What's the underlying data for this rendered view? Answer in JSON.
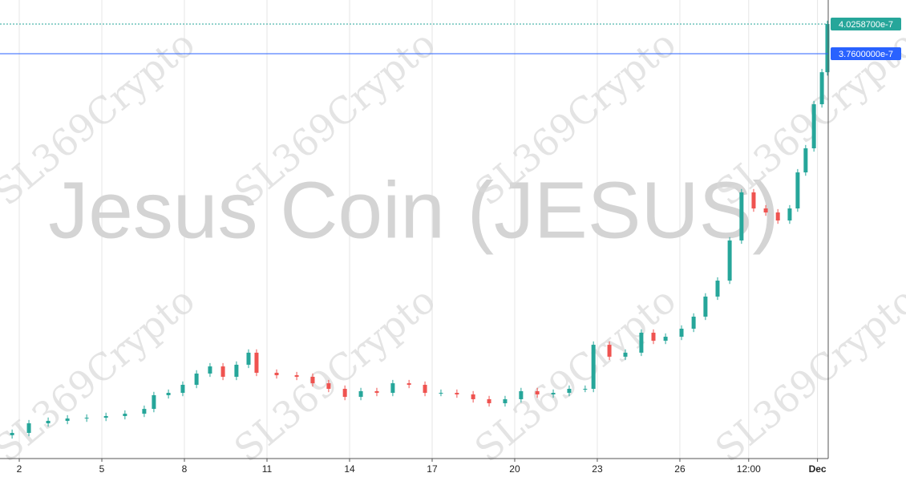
{
  "chart_data": {
    "type": "candlestick",
    "watermark": "Jesus Coin (JESUS)",
    "overlay": "SL369Crypto",
    "up_color": "#26a69a",
    "down_color": "#ef5350",
    "grid": true,
    "xlim": [
      1.3,
      31.39
    ],
    "ylim": [
      1.31e-08,
      4.2414e-07
    ],
    "xticks": [
      {
        "value": 2,
        "label": "2"
      },
      {
        "value": 5,
        "label": "5"
      },
      {
        "value": 8,
        "label": "8"
      },
      {
        "value": 11,
        "label": "11"
      },
      {
        "value": 14,
        "label": "14"
      },
      {
        "value": 17,
        "label": "17"
      },
      {
        "value": 20,
        "label": "20"
      },
      {
        "value": 23,
        "label": "23"
      },
      {
        "value": 26,
        "label": "26"
      },
      {
        "value": 28.5,
        "label": "12:00"
      },
      {
        "value": 31,
        "label": "Dec"
      }
    ],
    "price_lines": [
      {
        "value": 4.02587e-07,
        "label": "4.0258700e-7",
        "color": "#26a69a",
        "dashed": true
      },
      {
        "value": 3.76e-07,
        "label": "3.7600000e-7",
        "color": "#2962ff",
        "dashed": false
      }
    ],
    "x": [
      1.74,
      2.35,
      3.05,
      3.75,
      4.45,
      5.15,
      5.84,
      6.54,
      6.89,
      7.42,
      7.94,
      8.44,
      8.93,
      9.4,
      9.89,
      10.33,
      10.62,
      11.35,
      12.08,
      12.66,
      13.24,
      13.83,
      14.41,
      14.99,
      15.57,
      16.16,
      16.74,
      17.32,
      17.9,
      18.49,
      19.07,
      19.65,
      20.23,
      20.82,
      21.4,
      21.98,
      22.56,
      22.86,
      23.44,
      24.02,
      24.6,
      25.04,
      25.48,
      26.06,
      26.5,
      26.93,
      27.37,
      27.81,
      28.24,
      28.68,
      29.12,
      29.56,
      29.99,
      30.28,
      30.57,
      30.87,
      31.16,
      31.36
    ],
    "open": [
      3.4e-08,
      3.61e-08,
      4.47e-08,
      4.69e-08,
      4.9e-08,
      4.97e-08,
      5.12e-08,
      5.33e-08,
      5.76e-08,
      6.99e-08,
      7.2e-08,
      7.92e-08,
      8.93e-08,
      9.57e-08,
      8.64e-08,
      9.72e-08,
      1.08e-07,
      9e-08,
      8.78e-08,
      8.64e-08,
      8.06e-08,
      7.56e-08,
      6.84e-08,
      7.35e-08,
      7.2e-08,
      8.06e-08,
      7.92e-08,
      7.2e-08,
      7.2e-08,
      7.06e-08,
      6.63e-08,
      6.27e-08,
      6.63e-08,
      7.35e-08,
      7.06e-08,
      7.2e-08,
      7.56e-08,
      7.56e-08,
      1.151e-07,
      1.044e-07,
      1.08e-07,
      1.259e-07,
      1.187e-07,
      1.223e-07,
      1.295e-07,
      1.403e-07,
      1.583e-07,
      1.726e-07,
      2.086e-07,
      2.517e-07,
      2.373e-07,
      2.337e-07,
      2.265e-07,
      2.373e-07,
      2.696e-07,
      2.912e-07,
      3.307e-07,
      3.594e-07
    ],
    "high": [
      3.91e-08,
      4.77e-08,
      4.99e-08,
      5.2e-08,
      5.27e-08,
      5.42e-08,
      5.63e-08,
      6.06e-08,
      7.29e-08,
      7.5e-08,
      8.22e-08,
      9.23e-08,
      9.87e-08,
      9.87e-08,
      1.002e-07,
      1.11e-07,
      1.11e-07,
      9.3e-08,
      9.08e-08,
      8.94e-08,
      8.36e-08,
      7.86e-08,
      7.65e-08,
      7.65e-08,
      8.36e-08,
      8.36e-08,
      8.22e-08,
      7.5e-08,
      7.5e-08,
      7.36e-08,
      6.93e-08,
      6.93e-08,
      7.65e-08,
      7.65e-08,
      7.5e-08,
      7.86e-08,
      7.86e-08,
      1.181e-07,
      1.181e-07,
      1.11e-07,
      1.289e-07,
      1.289e-07,
      1.253e-07,
      1.325e-07,
      1.433e-07,
      1.613e-07,
      1.756e-07,
      2.116e-07,
      2.547e-07,
      2.547e-07,
      2.403e-07,
      2.367e-07,
      2.403e-07,
      2.726e-07,
      2.942e-07,
      3.337e-07,
      3.624e-07,
      4.056e-07
    ],
    "low": [
      3.1e-08,
      3.31e-08,
      4.17e-08,
      4.39e-08,
      4.6e-08,
      4.67e-08,
      4.82e-08,
      5.03e-08,
      5.46e-08,
      6.69e-08,
      6.9e-08,
      7.62e-08,
      8.63e-08,
      8.34e-08,
      8.34e-08,
      9.42e-08,
      8.7e-08,
      8.48e-08,
      8.34e-08,
      7.76e-08,
      7.26e-08,
      6.54e-08,
      6.54e-08,
      6.9e-08,
      6.9e-08,
      7.62e-08,
      6.9e-08,
      6.9e-08,
      6.76e-08,
      6.33e-08,
      5.97e-08,
      5.97e-08,
      6.33e-08,
      6.76e-08,
      6.76e-08,
      6.9e-08,
      7.26e-08,
      7.26e-08,
      1.014e-07,
      1.014e-07,
      1.05e-07,
      1.157e-07,
      1.157e-07,
      1.193e-07,
      1.265e-07,
      1.373e-07,
      1.553e-07,
      1.696e-07,
      2.056e-07,
      2.343e-07,
      2.307e-07,
      2.235e-07,
      2.235e-07,
      2.343e-07,
      2.666e-07,
      2.882e-07,
      3.277e-07,
      3.564e-07
    ],
    "close": [
      3.61e-08,
      4.47e-08,
      4.69e-08,
      4.9e-08,
      4.97e-08,
      5.12e-08,
      5.33e-08,
      5.76e-08,
      6.99e-08,
      7.2e-08,
      7.92e-08,
      8.93e-08,
      9.57e-08,
      8.64e-08,
      9.72e-08,
      1.08e-07,
      9e-08,
      8.78e-08,
      8.64e-08,
      8.06e-08,
      7.56e-08,
      6.84e-08,
      7.35e-08,
      7.2e-08,
      8.06e-08,
      7.92e-08,
      7.2e-08,
      7.2e-08,
      7.06e-08,
      6.63e-08,
      6.27e-08,
      6.63e-08,
      7.35e-08,
      7.06e-08,
      7.2e-08,
      7.56e-08,
      7.56e-08,
      1.151e-07,
      1.044e-07,
      1.08e-07,
      1.259e-07,
      1.187e-07,
      1.223e-07,
      1.295e-07,
      1.403e-07,
      1.583e-07,
      1.726e-07,
      2.086e-07,
      2.517e-07,
      2.373e-07,
      2.337e-07,
      2.265e-07,
      2.373e-07,
      2.696e-07,
      2.912e-07,
      3.307e-07,
      3.594e-07,
      4.02587e-07
    ]
  }
}
